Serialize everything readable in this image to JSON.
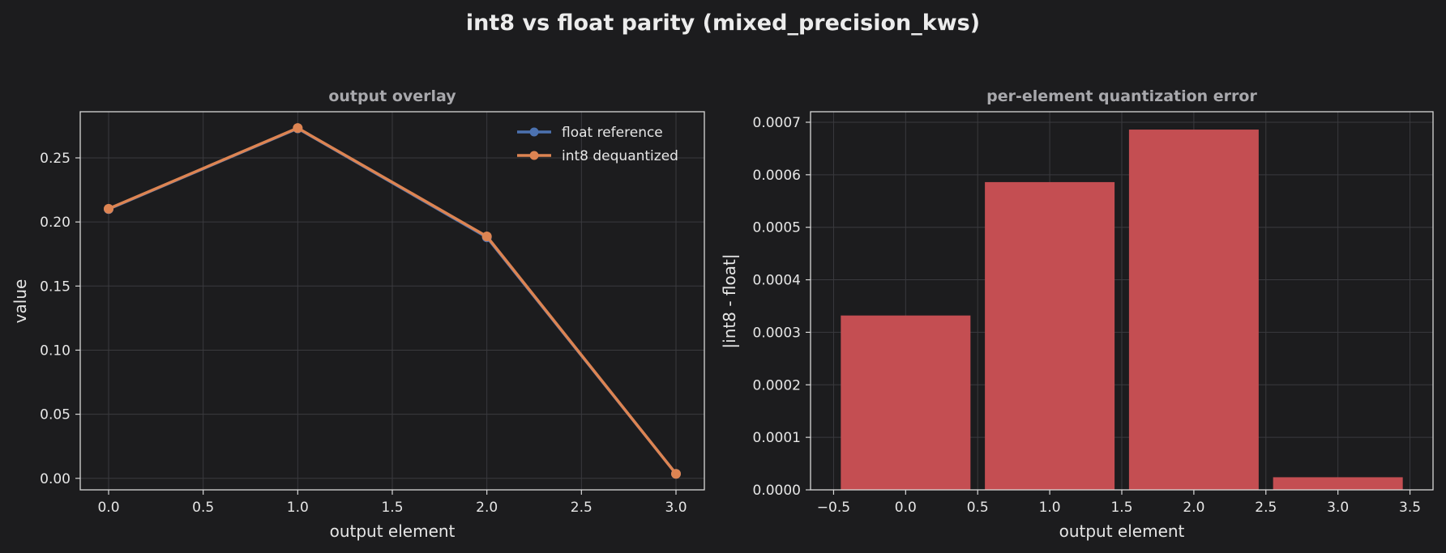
{
  "figure": {
    "title": "int8 vs float parity  (mixed_precision_kws)",
    "background": "#1c1c1e",
    "text_color": "#e6e6e6",
    "panel_title_color": "#a8a8ac",
    "grid_color": "#3a3a3e",
    "spine_color": "#d8d8d8"
  },
  "chart_data": [
    {
      "type": "line",
      "title": "output overlay",
      "xlabel": "output element",
      "ylabel": "value",
      "xlim": [
        -0.15,
        3.15
      ],
      "ylim": [
        -0.009,
        0.286
      ],
      "xticks": [
        0.0,
        0.5,
        1.0,
        1.5,
        2.0,
        2.5,
        3.0
      ],
      "xtick_labels": [
        "0.0",
        "0.5",
        "1.0",
        "1.5",
        "2.0",
        "2.5",
        "3.0"
      ],
      "yticks": [
        0.0,
        0.05,
        0.1,
        0.15,
        0.2,
        0.25
      ],
      "ytick_labels": [
        "0.00",
        "0.05",
        "0.10",
        "0.15",
        "0.20",
        "0.25"
      ],
      "grid": true,
      "legend": "top-right",
      "x": [
        0,
        1,
        2,
        3
      ],
      "series": [
        {
          "name": "float reference",
          "color": "#4c72b0",
          "values": [
            0.21,
            0.273,
            0.188,
            0.0035
          ]
        },
        {
          "name": "int8 dequantized",
          "color": "#dd8452",
          "values": [
            0.2103,
            0.2733,
            0.1887,
            0.0035
          ]
        }
      ]
    },
    {
      "type": "bar",
      "title": "per-element quantization error",
      "xlabel": "output element",
      "ylabel": "|int8 - float|",
      "xlim": [
        -0.66,
        3.66
      ],
      "ylim": [
        0,
        0.00072
      ],
      "xticks": [
        -0.5,
        0.0,
        0.5,
        1.0,
        1.5,
        2.0,
        2.5,
        3.0,
        3.5
      ],
      "xtick_labels": [
        "−0.5",
        "0.0",
        "0.5",
        "1.0",
        "1.5",
        "2.0",
        "2.5",
        "3.0",
        "3.5"
      ],
      "yticks": [
        0.0,
        0.0001,
        0.0002,
        0.0003,
        0.0004,
        0.0005,
        0.0006,
        0.0007
      ],
      "ytick_labels": [
        "0.0000",
        "0.0001",
        "0.0002",
        "0.0003",
        "0.0004",
        "0.0005",
        "0.0006",
        "0.0007"
      ],
      "grid": true,
      "bar_color": "#c44e52",
      "categories": [
        0,
        1,
        2,
        3
      ],
      "values": [
        0.000332,
        0.000586,
        0.000686,
        2.4e-05
      ]
    }
  ]
}
